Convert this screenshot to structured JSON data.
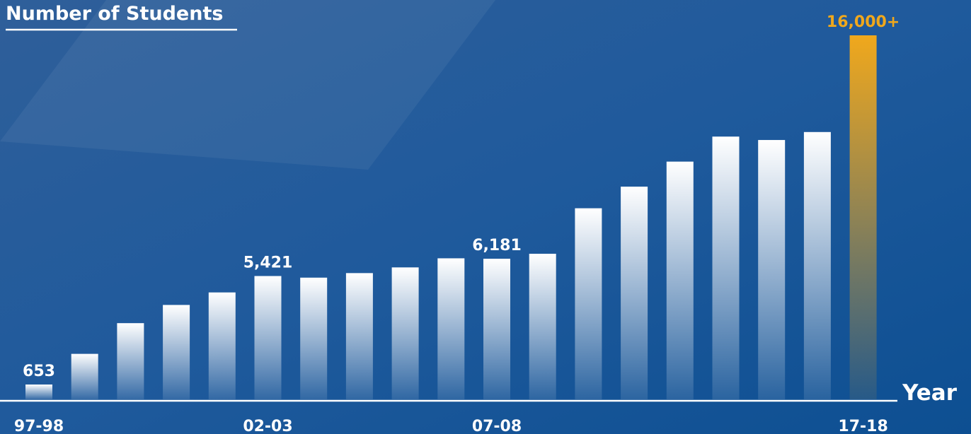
{
  "chart_data": {
    "type": "bar",
    "title": "Number of Students",
    "x_label": "Year",
    "categories": [
      "97-98",
      null,
      null,
      null,
      null,
      "02-03",
      null,
      null,
      null,
      null,
      "07-08",
      null,
      null,
      null,
      null,
      null,
      null,
      null,
      "17-18"
    ],
    "values": [
      653,
      2000,
      3350,
      4150,
      4700,
      5421,
      5350,
      5550,
      5800,
      6200,
      6181,
      6400,
      8400,
      9350,
      10450,
      11550,
      11400,
      11750,
      16000
    ],
    "value_labels": [
      "653",
      null,
      null,
      null,
      null,
      "5,421",
      null,
      null,
      null,
      null,
      "6,181",
      null,
      null,
      null,
      null,
      null,
      null,
      null,
      "16,000+"
    ],
    "color": "#ffffff",
    "highlight_color": "#f0a81c",
    "ylim": [
      0,
      16000
    ]
  }
}
